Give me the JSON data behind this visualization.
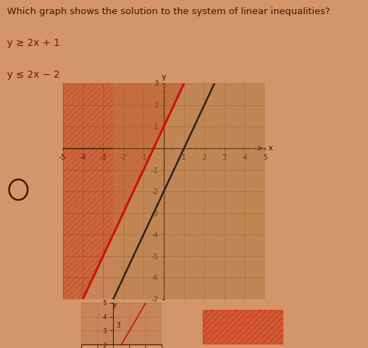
{
  "eq1_slope": 2,
  "eq1_intercept": 1,
  "eq2_slope": 2,
  "eq2_intercept": -2,
  "xmin": -5,
  "xmax": 5,
  "ymin": -7,
  "ymax": 3,
  "background_color": "#D4956A",
  "plot_bg_color": "#C8855A",
  "grid_color": "#A06030",
  "line1_color": "#CC1100",
  "line2_color": "#222222",
  "shade_left_color": "#CC2200",
  "shade_right_color": "#B8864A",
  "question_text": "Which graph shows the solution to the system of linear inequalities?",
  "ineq1_text": "y ≥ 2x + 1",
  "ineq2_text": "y ≤ 2x − 2"
}
